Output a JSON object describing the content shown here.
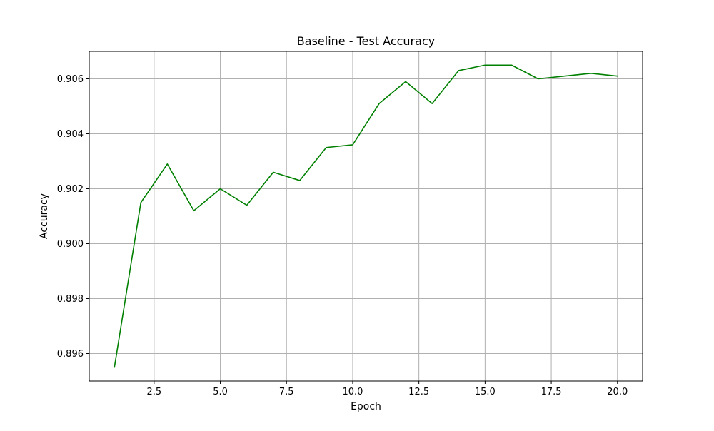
{
  "chart_data": {
    "type": "line",
    "title": "Baseline - Test Accuracy",
    "xlabel": "Epoch",
    "ylabel": "Accuracy",
    "xlim": [
      0.05,
      20.95
    ],
    "ylim": [
      0.895,
      0.907
    ],
    "x_ticks": [
      2.5,
      5.0,
      7.5,
      10.0,
      12.5,
      15.0,
      17.5,
      20.0
    ],
    "x_tick_labels": [
      "2.5",
      "5.0",
      "7.5",
      "10.0",
      "12.5",
      "15.0",
      "17.5",
      "20.0"
    ],
    "y_ticks": [
      0.896,
      0.898,
      0.9,
      0.902,
      0.904,
      0.906
    ],
    "y_tick_labels": [
      "0.896",
      "0.898",
      "0.900",
      "0.902",
      "0.904",
      "0.906"
    ],
    "grid": true,
    "series": [
      {
        "color": "#008000",
        "x": [
          1,
          2,
          3,
          4,
          5,
          6,
          7,
          8,
          9,
          10,
          11,
          12,
          13,
          14,
          15,
          16,
          17,
          18,
          19,
          20
        ],
        "values": [
          0.8955,
          0.9015,
          0.9029,
          0.9012,
          0.902,
          0.9014,
          0.9026,
          0.9023,
          0.9035,
          0.9036,
          0.9051,
          0.9059,
          0.9051,
          0.9063,
          0.9065,
          0.9065,
          0.906,
          0.9061,
          0.9062,
          0.9061
        ]
      }
    ]
  }
}
